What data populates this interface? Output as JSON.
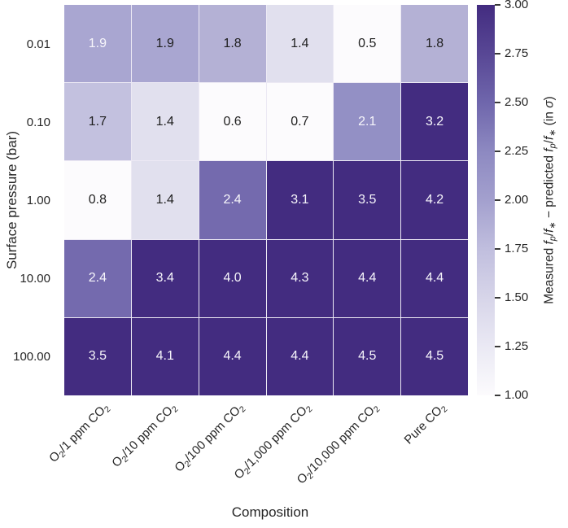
{
  "figure": {
    "background": "#ffffff",
    "tick_text_color": "#262626"
  },
  "chart_data": {
    "type": "heatmap",
    "title": "",
    "xlabel": "Composition",
    "ylabel": "Surface pressure (bar)",
    "x_categories": [
      "O2/1 ppm CO2",
      "O2/10 ppm CO2",
      "O2/100 ppm CO2",
      "O2/1,000 ppm CO2",
      "O2/10,000 ppm CO2",
      "Pure CO2"
    ],
    "x_categories_rich": [
      [
        {
          "t": "O"
        },
        {
          "t": "2",
          "sub": true
        },
        {
          "t": "/1 ppm CO"
        },
        {
          "t": "2",
          "sub": true
        }
      ],
      [
        {
          "t": "O"
        },
        {
          "t": "2",
          "sub": true
        },
        {
          "t": "/10 ppm CO"
        },
        {
          "t": "2",
          "sub": true
        }
      ],
      [
        {
          "t": "O"
        },
        {
          "t": "2",
          "sub": true
        },
        {
          "t": "/100 ppm CO"
        },
        {
          "t": "2",
          "sub": true
        }
      ],
      [
        {
          "t": "O"
        },
        {
          "t": "2",
          "sub": true
        },
        {
          "t": "/1,000 ppm CO"
        },
        {
          "t": "2",
          "sub": true
        }
      ],
      [
        {
          "t": "O"
        },
        {
          "t": "2",
          "sub": true
        },
        {
          "t": "/10,000 ppm CO"
        },
        {
          "t": "2",
          "sub": true
        }
      ],
      [
        {
          "t": "Pure CO"
        },
        {
          "t": "2",
          "sub": true
        }
      ]
    ],
    "y_categories": [
      "0.01",
      "0.10",
      "1.00",
      "10.00",
      "100.00"
    ],
    "values": [
      [
        1.9,
        1.9,
        1.8,
        1.4,
        0.5,
        1.8
      ],
      [
        1.7,
        1.4,
        0.6,
        0.7,
        2.1,
        3.2
      ],
      [
        0.8,
        1.4,
        2.4,
        3.1,
        3.5,
        4.2
      ],
      [
        2.4,
        3.4,
        4.0,
        4.3,
        4.4,
        4.4
      ],
      [
        3.5,
        4.1,
        4.4,
        4.4,
        4.5,
        4.5
      ]
    ],
    "cell_text": [
      [
        "1.9",
        "1.9",
        "1.8",
        "1.4",
        "0.5",
        "1.8"
      ],
      [
        "1.7",
        "1.4",
        "0.6",
        "0.7",
        "2.1",
        "3.2"
      ],
      [
        "0.8",
        "1.4",
        "2.4",
        "3.1",
        "3.5",
        "4.2"
      ],
      [
        "2.4",
        "3.4",
        "4.0",
        "4.3",
        "4.4",
        "4.4"
      ],
      [
        "3.5",
        "4.1",
        "4.4",
        "4.4",
        "4.5",
        "4.5"
      ]
    ],
    "cell_bg": [
      [
        "#a9a6d1",
        "#a9a6d1",
        "#b4b1d5",
        "#e1e0ee",
        "#fcfbfd",
        "#b4b1d5"
      ],
      [
        "#c3c1df",
        "#e1e0ee",
        "#fcfbfd",
        "#fcfbfd",
        "#9390c5",
        "#432c80"
      ],
      [
        "#fcfbfd",
        "#e1e0ee",
        "#746aae",
        "#432c80",
        "#432c80",
        "#432c80"
      ],
      [
        "#746aae",
        "#432c80",
        "#432c80",
        "#432c80",
        "#432c80",
        "#432c80"
      ],
      [
        "#432c80",
        "#432c80",
        "#432c80",
        "#432c80",
        "#432c80",
        "#432c80"
      ]
    ],
    "cell_text_white": [
      [
        true,
        false,
        false,
        false,
        false,
        false
      ],
      [
        false,
        false,
        false,
        false,
        true,
        true
      ],
      [
        false,
        false,
        true,
        true,
        true,
        true
      ],
      [
        true,
        true,
        true,
        true,
        true,
        true
      ],
      [
        true,
        true,
        true,
        true,
        true,
        true
      ]
    ],
    "annotation_colors": {
      "dark_text": "#1f1f1f",
      "light_text": "#f7f6fb"
    },
    "grid_line_color": "#ece9f4",
    "colorbar": {
      "label": "Measured fp/f* − predicted fp/f* (in σ)",
      "label_rich": [
        {
          "t": "Measured "
        },
        {
          "t": "f",
          "i": true
        },
        {
          "t": "p",
          "sub": true,
          "i": true
        },
        {
          "t": "/"
        },
        {
          "t": "f",
          "i": true
        },
        {
          "t": "∗",
          "sub": true
        },
        {
          "t": " − predicted "
        },
        {
          "t": "f",
          "i": true
        },
        {
          "t": "p",
          "sub": true,
          "i": true
        },
        {
          "t": "/"
        },
        {
          "t": "f",
          "i": true
        },
        {
          "t": "∗",
          "sub": true
        },
        {
          "t": " (in "
        },
        {
          "t": "σ",
          "i": true
        },
        {
          "t": ")"
        }
      ],
      "ticks": [
        "3.00",
        "2.75",
        "2.50",
        "2.25",
        "2.00",
        "1.75",
        "1.50",
        "1.25",
        "1.00"
      ],
      "vmin": 1.0,
      "vmax": 3.0,
      "colormap": "Purples",
      "gradient_stops_bottom_to_top": [
        "#fcfbfd",
        "#eae9f4",
        "#d7d5e9",
        "#c0bede",
        "#a3a0ce",
        "#8d89c1",
        "#6f66ac",
        "#584795",
        "#432c80"
      ]
    }
  }
}
